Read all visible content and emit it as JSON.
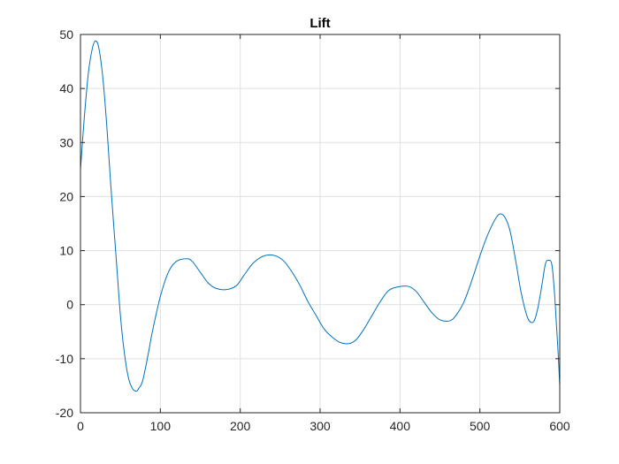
{
  "chart_data": {
    "type": "line",
    "title": "Lift",
    "xlabel": "",
    "ylabel": "",
    "xlim": [
      0,
      600
    ],
    "ylim": [
      -20,
      50
    ],
    "xticks": [
      0,
      100,
      200,
      300,
      400,
      500,
      600
    ],
    "yticks": [
      -20,
      -10,
      0,
      10,
      20,
      30,
      40,
      50
    ],
    "grid": true,
    "line_color": "#0072BD",
    "series": [
      {
        "x": [
          0,
          5,
          10,
          15,
          19,
          23,
          28,
          33,
          38,
          45,
          50,
          55,
          60,
          65,
          70,
          73,
          78,
          85,
          90,
          100,
          110,
          120,
          133,
          140,
          150,
          160,
          170,
          183,
          195,
          205,
          215,
          225,
          235,
          245,
          255,
          265,
          275,
          285,
          295,
          305,
          315,
          325,
          336,
          345,
          355,
          365,
          375,
          385,
          395,
          410,
          420,
          430,
          440,
          450,
          462,
          470,
          480,
          490,
          500,
          510,
          520,
          526,
          532,
          538,
          545,
          552,
          560,
          567,
          572,
          577,
          582,
          586,
          590,
          593,
          596,
          598,
          600
        ],
        "y": [
          25,
          35,
          43,
          47.5,
          48.8,
          47.5,
          42,
          33,
          22,
          8,
          -2,
          -9,
          -13.5,
          -15.5,
          -16,
          -15.5,
          -14,
          -9,
          -5,
          1.5,
          6,
          8,
          8.5,
          8,
          6,
          4,
          3,
          2.8,
          3.5,
          5.5,
          7.5,
          8.7,
          9.2,
          9,
          8,
          6,
          3.5,
          0.5,
          -2,
          -4.5,
          -6,
          -7,
          -7.2,
          -6.5,
          -4.5,
          -2,
          0.5,
          2.5,
          3.2,
          3.4,
          2.5,
          0.5,
          -1.5,
          -2.8,
          -3,
          -2,
          0.5,
          4.5,
          9,
          13,
          16,
          16.8,
          16,
          13.5,
          8,
          2,
          -2.5,
          -3.2,
          -1,
          3,
          7.5,
          8.2,
          7.5,
          3,
          -4,
          -9,
          -15
        ]
      }
    ]
  }
}
